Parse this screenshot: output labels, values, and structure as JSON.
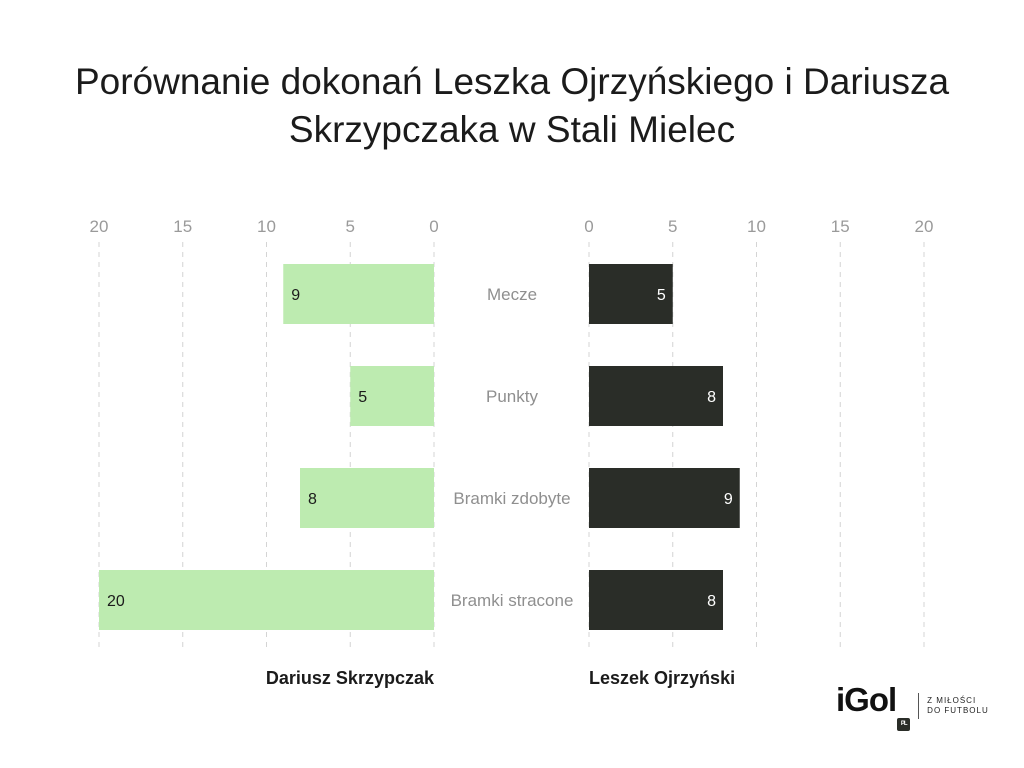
{
  "title_lines": [
    "Porównanie dokonań Leszka Ojrzyńskiego i Dariusza",
    "Skrzypczaka w Stali Mielec"
  ],
  "chart_data": {
    "type": "bar",
    "orientation": "horizontal",
    "layout": "butterfly",
    "title": "Porównanie dokonań Leszka Ojrzyńskiego i Dariusza Skrzypczaka w Stali Mielec",
    "categories": [
      "Mecze",
      "Punkty",
      "Bramki zdobyte",
      "Bramki stracone"
    ],
    "xlim": [
      0,
      20
    ],
    "ticks": [
      0,
      5,
      10,
      15,
      20
    ],
    "grid": true,
    "series": [
      {
        "name": "Dariusz Skrzypczak",
        "side": "left",
        "color": "#bdebb0",
        "label_color": "#1b1b1b",
        "values": [
          9,
          5,
          8,
          20
        ]
      },
      {
        "name": "Leszek Ojrzyński",
        "side": "right",
        "color": "#2a2d28",
        "label_color": "#ffffff",
        "values": [
          5,
          8,
          9,
          8
        ]
      }
    ]
  },
  "logo": {
    "text": "iGol",
    "badge": "PL",
    "tagline": [
      "Z MIŁOŚCI",
      "DO FUTBOLU"
    ]
  }
}
